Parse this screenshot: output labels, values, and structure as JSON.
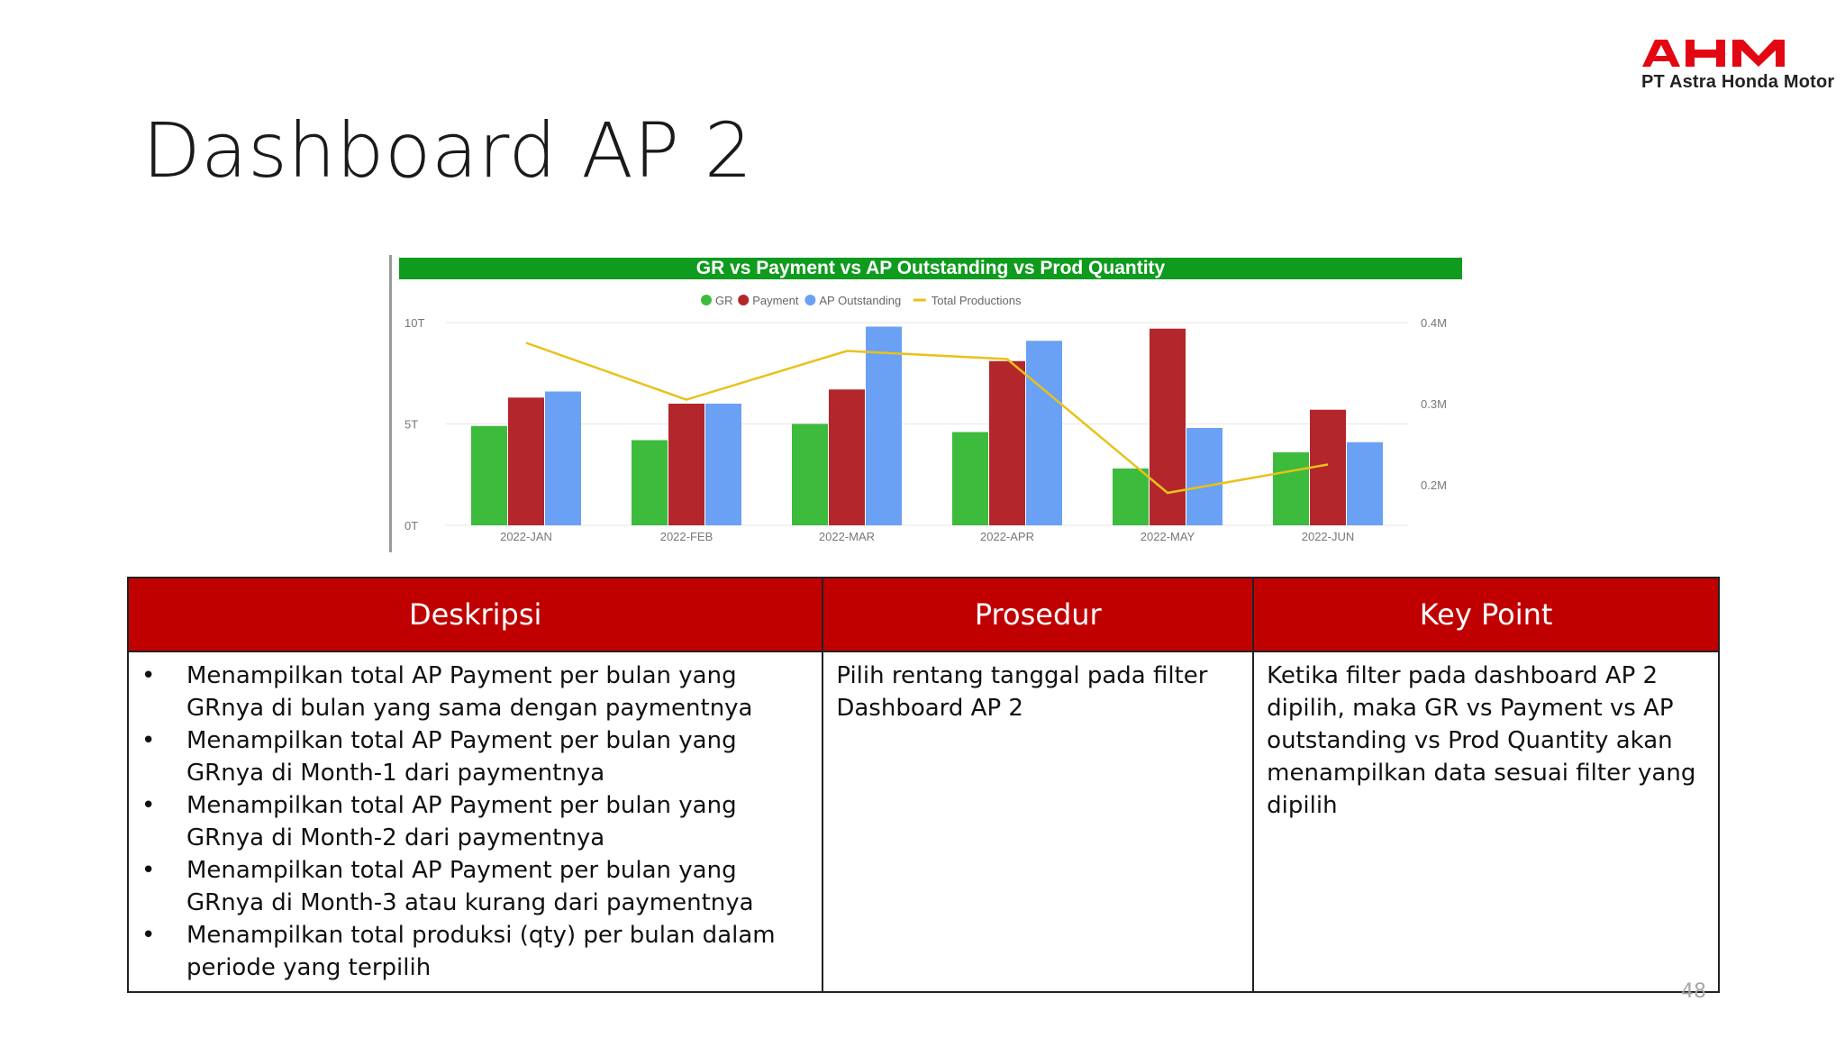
{
  "brand": {
    "logo_text": "AHM",
    "company": "PT Astra Honda Motor",
    "color": "#e30613"
  },
  "slide": {
    "title": "Dashboard AP 2",
    "page_number": "48"
  },
  "chart_data": {
    "type": "bar",
    "title": "GR vs Payment vs AP Outstanding vs Prod Quantity",
    "categories": [
      "2022-JAN",
      "2022-FEB",
      "2022-MAR",
      "2022-APR",
      "2022-MAY",
      "2022-JUN"
    ],
    "series": [
      {
        "name": "GR",
        "type": "bar",
        "axis": "left",
        "color": "#3dbb3d",
        "values": [
          4.9,
          4.2,
          5.0,
          4.6,
          2.8,
          3.6
        ]
      },
      {
        "name": "Payment",
        "type": "bar",
        "axis": "left",
        "color": "#b3262b",
        "values": [
          6.3,
          6.0,
          6.7,
          8.1,
          9.7,
          5.7
        ]
      },
      {
        "name": "AP Outstanding",
        "type": "bar",
        "axis": "left",
        "color": "#6aa1f5",
        "values": [
          6.6,
          6.0,
          9.8,
          9.1,
          4.8,
          4.1
        ]
      },
      {
        "name": "Total Productions",
        "type": "line",
        "axis": "right",
        "color": "#e8c21a",
        "values": [
          0.375,
          0.305,
          0.365,
          0.355,
          0.19,
          0.225
        ]
      }
    ],
    "yaxis_left": {
      "ticks": [
        "0T",
        "5T",
        "10T"
      ],
      "range": [
        0,
        10
      ]
    },
    "yaxis_right": {
      "ticks": [
        "0.2M",
        "0.3M",
        "0.4M"
      ],
      "range": [
        0.15,
        0.4
      ]
    },
    "legend": "top-center",
    "grid": true
  },
  "table": {
    "headers": [
      "Deskripsi",
      "Prosedur",
      "Key Point"
    ],
    "header_color": "#c00000",
    "deskripsi": [
      "Menampilkan total AP Payment per bulan yang GRnya di bulan yang sama dengan paymentnya",
      "Menampilkan total AP Payment per bulan yang GRnya di Month-1 dari paymentnya",
      "Menampilkan total AP Payment per bulan yang GRnya di Month-2 dari paymentnya",
      "Menampilkan total AP Payment per bulan yang GRnya di Month-3 atau kurang dari paymentnya",
      "Menampilkan total produksi (qty) per bulan dalam periode yang terpilih"
    ],
    "prosedur": "Pilih rentang tanggal pada filter Dashboard AP 2",
    "key_point": "Ketika filter pada dashboard AP 2 dipilih, maka GR vs Payment vs AP outstanding vs Prod Quantity akan menampilkan data sesuai filter yang dipilih"
  }
}
